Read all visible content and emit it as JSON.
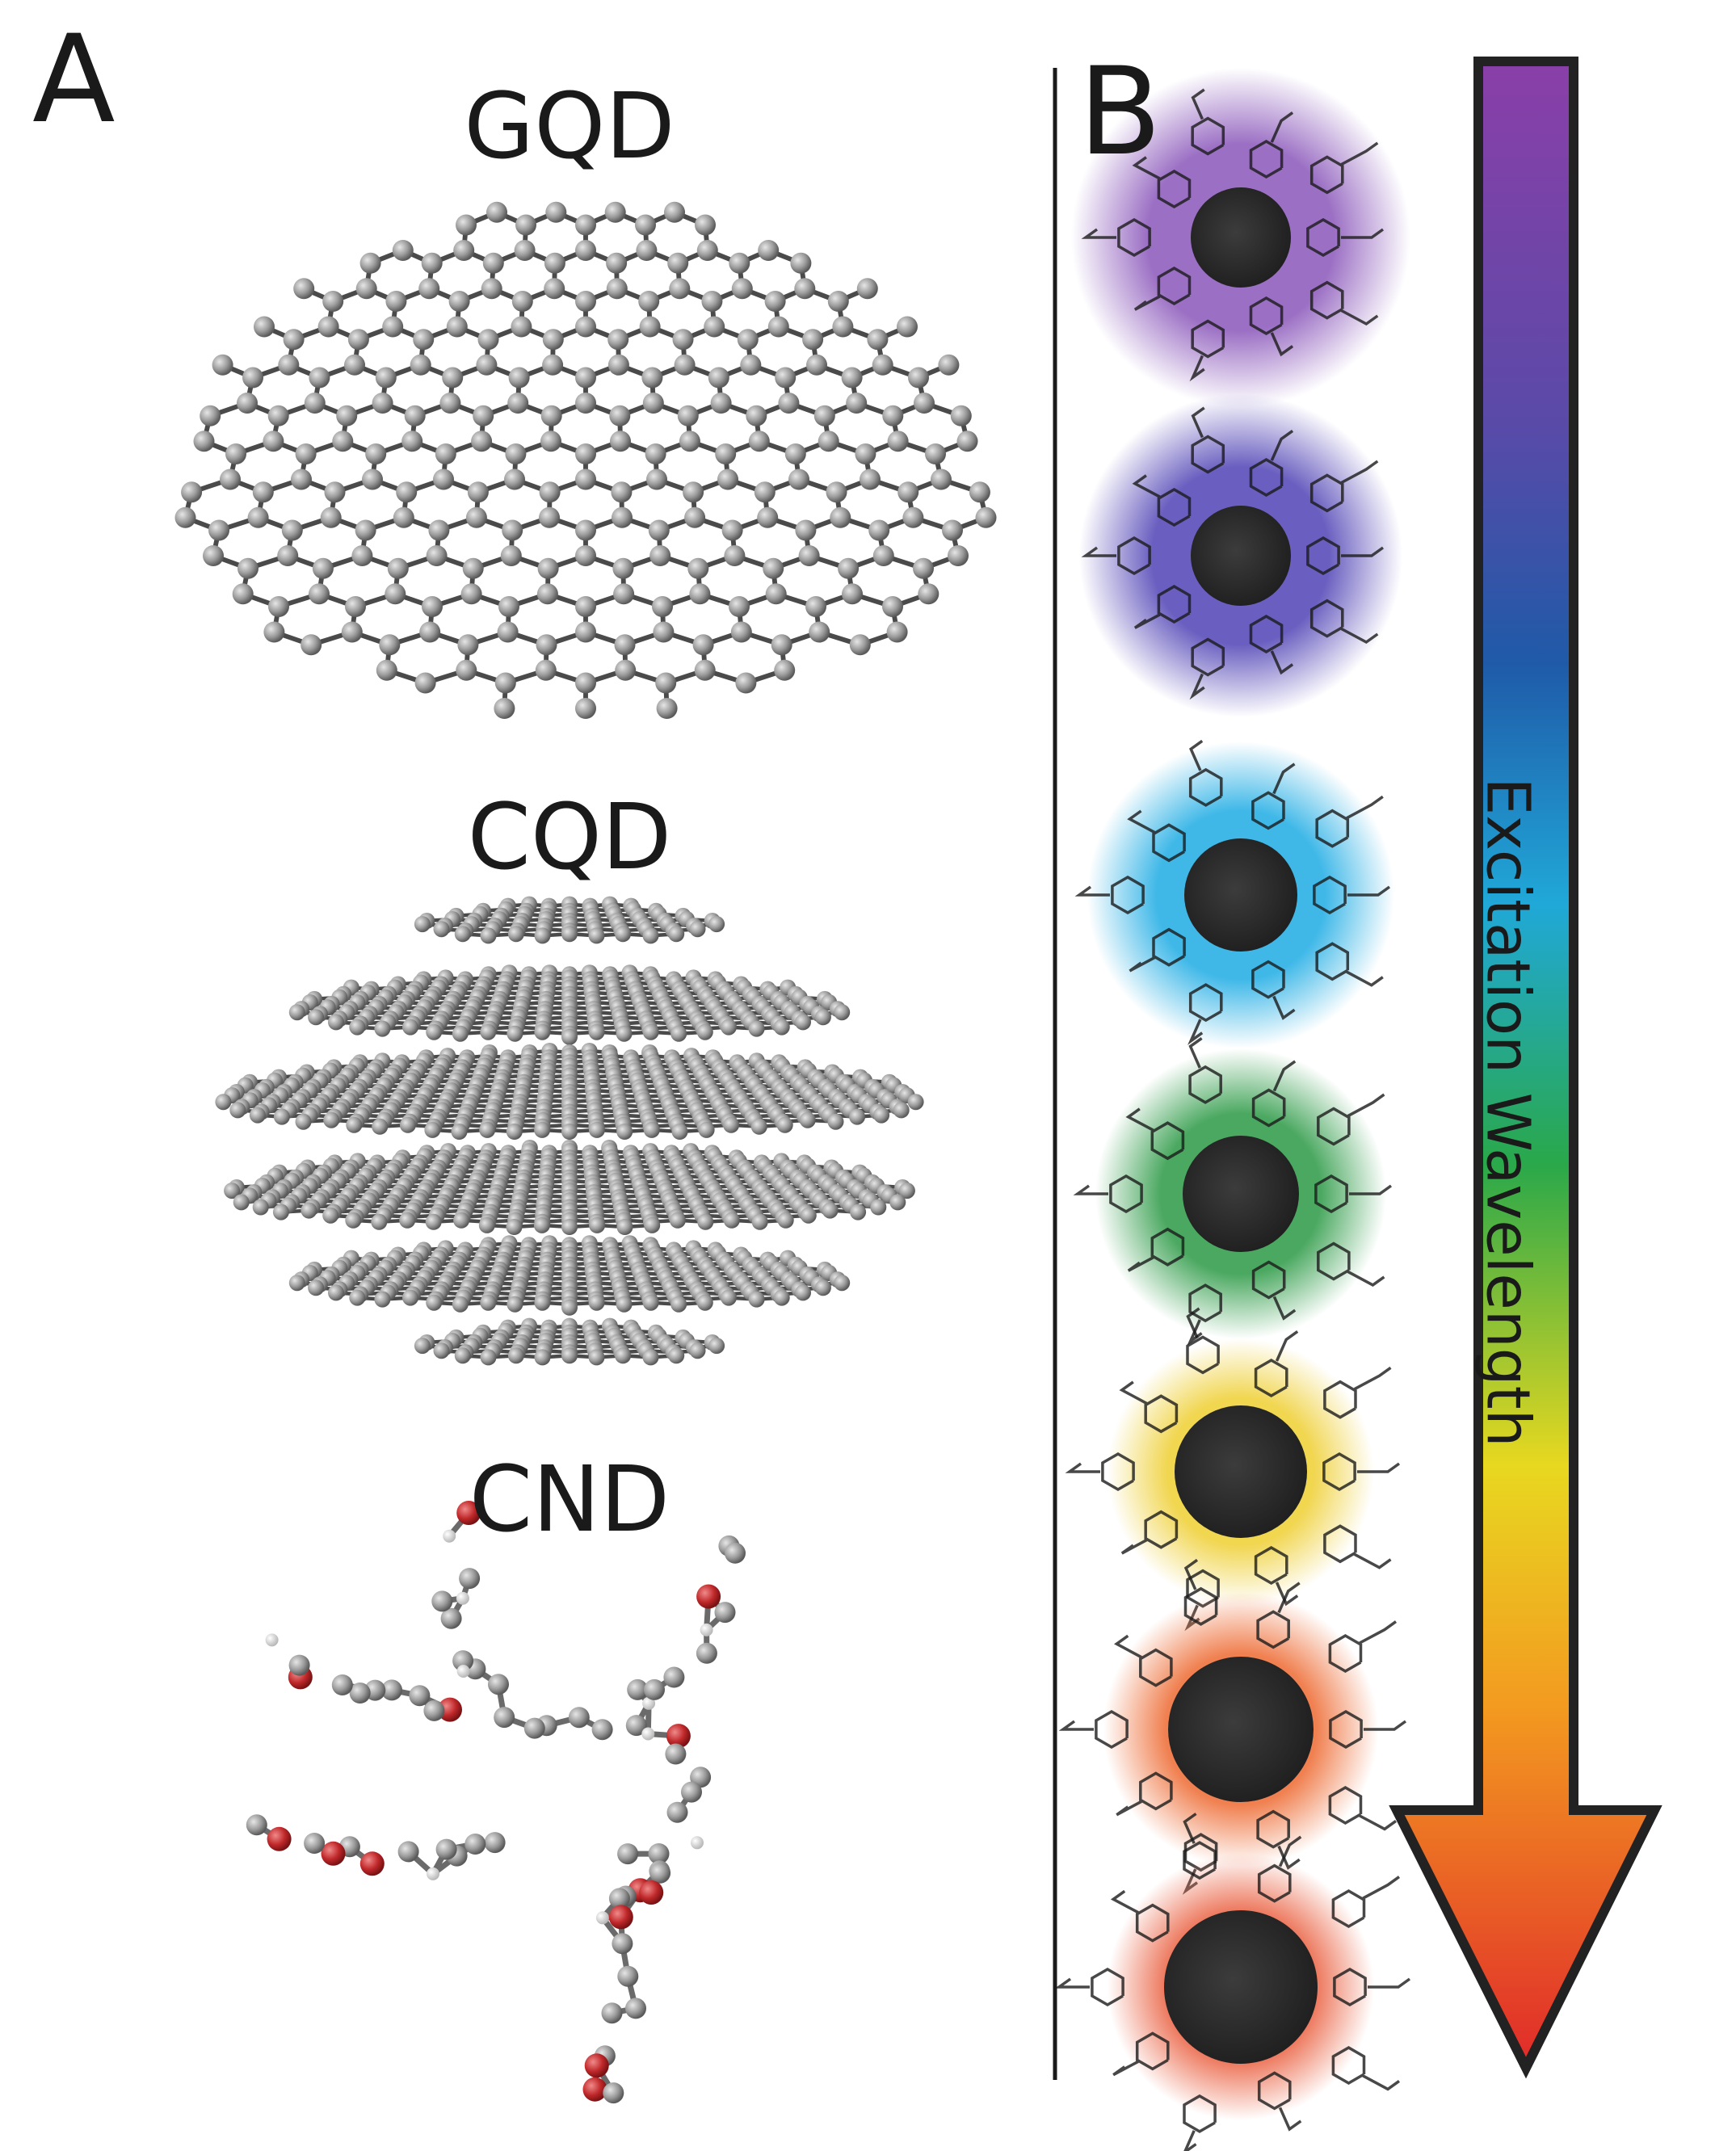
{
  "panel_a": {
    "label": "A",
    "items": [
      {
        "label": "GQD"
      },
      {
        "label": "CQD"
      },
      {
        "label": "CND"
      }
    ]
  },
  "panel_b": {
    "label": "B",
    "arrow_label": "Excitation Wavelength"
  }
}
